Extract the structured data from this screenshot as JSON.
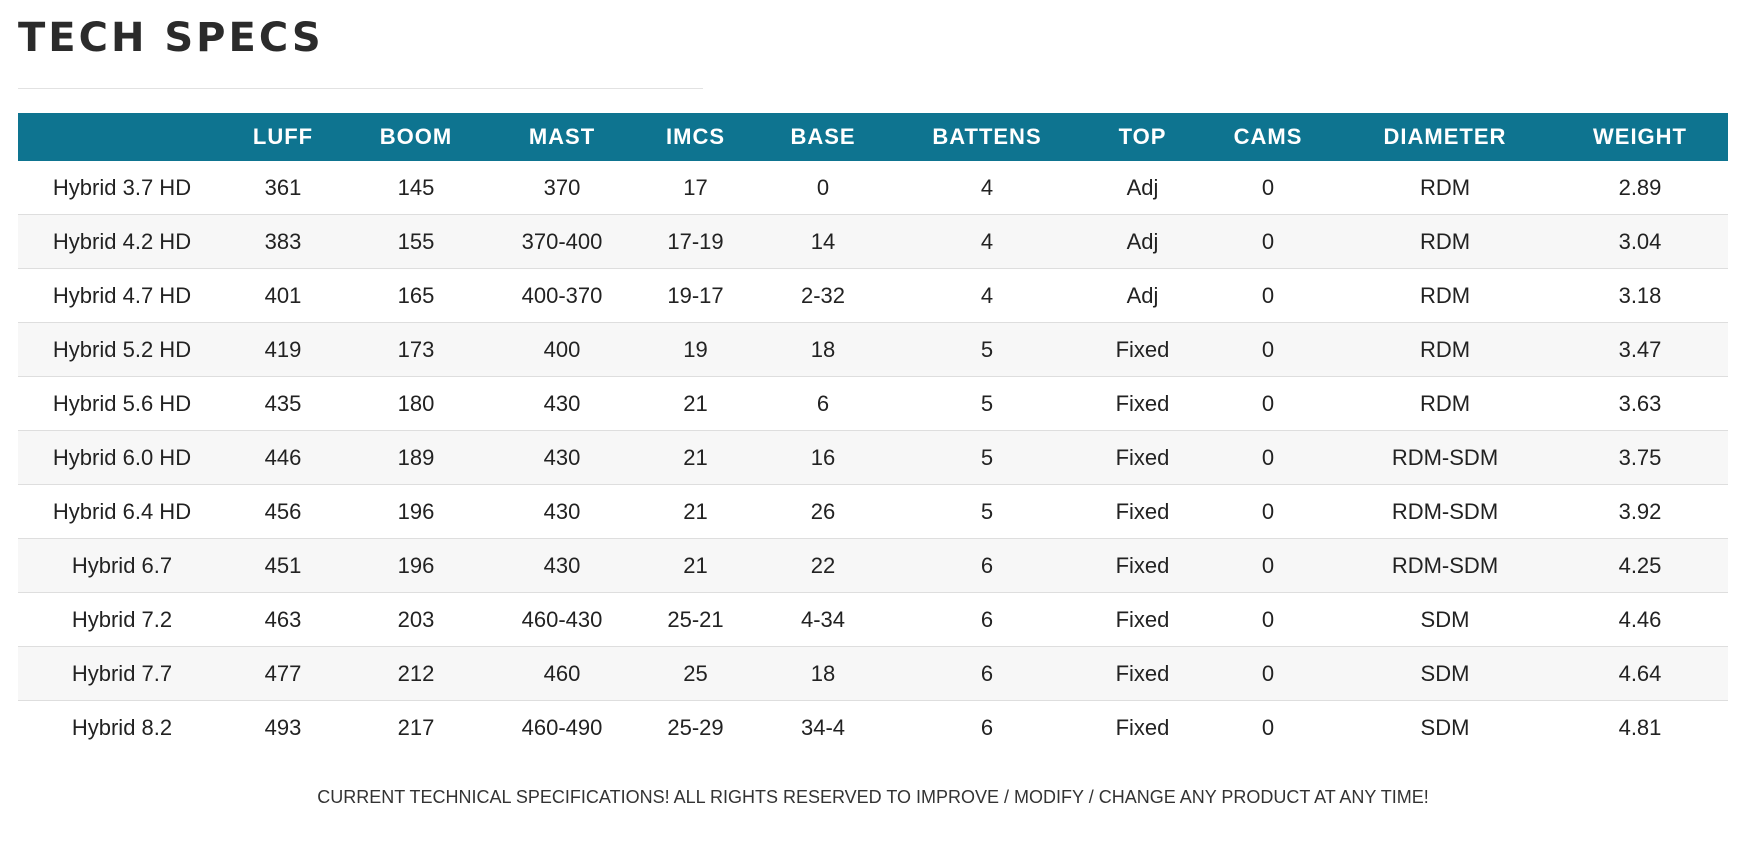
{
  "page": {
    "title": "TECH SPECS",
    "footnote": "CURRENT TECHNICAL SPECIFICATIONS! ALL RIGHTS RESERVED TO IMPROVE / MODIFY / CHANGE ANY PRODUCT AT ANY TIME!"
  },
  "colors": {
    "header_bg": "#0e7490",
    "header_text": "#ffffff",
    "row_alt_bg": "#f7f7f7"
  },
  "table": {
    "headers": [
      "",
      "LUFF",
      "BOOM",
      "MAST",
      "IMCS",
      "BASE",
      "BATTENS",
      "TOP",
      "CAMS",
      "DIAMETER",
      "WEIGHT"
    ],
    "rows": [
      [
        "Hybrid 3.7 HD",
        "361",
        "145",
        "370",
        "17",
        "0",
        "4",
        "Adj",
        "0",
        "RDM",
        "2.89"
      ],
      [
        "Hybrid 4.2 HD",
        "383",
        "155",
        "370-400",
        "17-19",
        "14",
        "4",
        "Adj",
        "0",
        "RDM",
        "3.04"
      ],
      [
        "Hybrid 4.7 HD",
        "401",
        "165",
        "400-370",
        "19-17",
        "2-32",
        "4",
        "Adj",
        "0",
        "RDM",
        "3.18"
      ],
      [
        "Hybrid 5.2 HD",
        "419",
        "173",
        "400",
        "19",
        "18",
        "5",
        "Fixed",
        "0",
        "RDM",
        "3.47"
      ],
      [
        "Hybrid 5.6 HD",
        "435",
        "180",
        "430",
        "21",
        "6",
        "5",
        "Fixed",
        "0",
        "RDM",
        "3.63"
      ],
      [
        "Hybrid 6.0 HD",
        "446",
        "189",
        "430",
        "21",
        "16",
        "5",
        "Fixed",
        "0",
        "RDM-SDM",
        "3.75"
      ],
      [
        "Hybrid 6.4 HD",
        "456",
        "196",
        "430",
        "21",
        "26",
        "5",
        "Fixed",
        "0",
        "RDM-SDM",
        "3.92"
      ],
      [
        "Hybrid 6.7",
        "451",
        "196",
        "430",
        "21",
        "22",
        "6",
        "Fixed",
        "0",
        "RDM-SDM",
        "4.25"
      ],
      [
        "Hybrid 7.2",
        "463",
        "203",
        "460-430",
        "25-21",
        "4-34",
        "6",
        "Fixed",
        "0",
        "SDM",
        "4.46"
      ],
      [
        "Hybrid 7.7",
        "477",
        "212",
        "460",
        "25",
        "18",
        "6",
        "Fixed",
        "0",
        "SDM",
        "4.64"
      ],
      [
        "Hybrid 8.2",
        "493",
        "217",
        "460-490",
        "25-29",
        "34-4",
        "6",
        "Fixed",
        "0",
        "SDM",
        "4.81"
      ]
    ]
  }
}
